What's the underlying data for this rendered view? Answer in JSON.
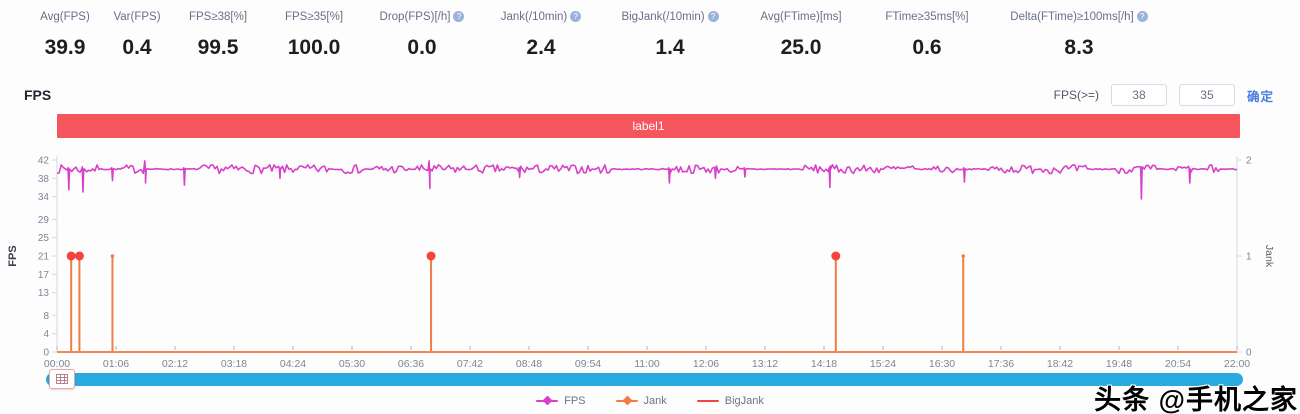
{
  "metrics": [
    {
      "label": "Avg(FPS)",
      "value": "39.9",
      "info": false
    },
    {
      "label": "Var(FPS)",
      "value": "0.4",
      "info": false
    },
    {
      "label": "FPS≥38[%]",
      "value": "99.5",
      "info": false
    },
    {
      "label": "FPS≥35[%]",
      "value": "100.0",
      "info": false
    },
    {
      "label": "Drop(FPS)[/h]",
      "value": "0.0",
      "info": true
    },
    {
      "label": "Jank(/10min)",
      "value": "2.4",
      "info": true
    },
    {
      "label": "BigJank(/10min)",
      "value": "1.4",
      "info": true
    },
    {
      "label": "Avg(FTime)[ms]",
      "value": "25.0",
      "info": false
    },
    {
      "label": "FTime≥35ms[%]",
      "value": "0.6",
      "info": false
    },
    {
      "label": "Delta(FTime)≥100ms[/h]",
      "value": "8.3",
      "info": true
    }
  ],
  "section": {
    "title": "FPS"
  },
  "controls": {
    "threshold_label": "FPS(>=)",
    "input1": "38",
    "input2": "35",
    "confirm_label": "确定"
  },
  "banner": {
    "label": "label1",
    "color": "#f5555d"
  },
  "chart_data": {
    "type": "line",
    "title": "FPS timeline with Jank / BigJank events",
    "x_ticks": [
      "00:00",
      "01:06",
      "02:12",
      "03:18",
      "04:24",
      "05:30",
      "06:36",
      "07:42",
      "08:48",
      "09:54",
      "11:00",
      "12:06",
      "13:12",
      "14:18",
      "15:24",
      "16:30",
      "17:36",
      "18:42",
      "19:48",
      "20:54",
      "22:00"
    ],
    "y_axis_left": {
      "label": "FPS",
      "ticks": [
        42,
        38,
        34,
        29,
        25,
        21,
        17,
        13,
        8,
        4,
        0
      ],
      "range": [
        0,
        42
      ]
    },
    "y_axis_right": {
      "label": "Jank",
      "ticks": [
        2,
        1,
        0
      ],
      "range": [
        0,
        2
      ]
    },
    "x_axis_color": "#ef8a57",
    "axis_line_color": "#d4d9e0",
    "tick_text_color": "#7c8698",
    "series": [
      {
        "name": "FPS",
        "type": "line",
        "color": "#d840c8",
        "baseline": 40,
        "noisy_segments": [
          [
            0.0,
            0.035
          ],
          [
            0.055,
            0.075
          ],
          [
            0.118,
            0.2
          ],
          [
            0.205,
            0.232
          ],
          [
            0.238,
            0.262
          ],
          [
            0.268,
            0.298
          ],
          [
            0.302,
            0.345
          ],
          [
            0.352,
            0.452
          ],
          [
            0.458,
            0.468
          ],
          [
            0.518,
            0.562
          ],
          [
            0.568,
            0.578
          ],
          [
            0.632,
            0.725
          ],
          [
            0.742,
            0.762
          ],
          [
            0.788,
            0.828
          ],
          [
            0.835,
            0.872
          ],
          [
            0.898,
            0.932
          ],
          [
            0.948,
            0.962
          ],
          [
            0.972,
            0.985
          ]
        ],
        "events": [
          {
            "f": 0.01,
            "lo": 35.5
          },
          {
            "f": 0.022,
            "lo": 35.0
          },
          {
            "f": 0.047,
            "lo": 37.5
          },
          {
            "f": 0.075,
            "hi": 41.8,
            "lo": 37.0
          },
          {
            "f": 0.108,
            "lo": 36.5
          },
          {
            "f": 0.189,
            "lo": 38.0
          },
          {
            "f": 0.316,
            "hi": 41.8,
            "lo": 35.8
          },
          {
            "f": 0.392,
            "lo": 38.2
          },
          {
            "f": 0.519,
            "lo": 37.0
          },
          {
            "f": 0.558,
            "lo": 38.0
          },
          {
            "f": 0.583,
            "lo": 38.3
          },
          {
            "f": 0.655,
            "lo": 36.0
          },
          {
            "f": 0.769,
            "lo": 37.2
          },
          {
            "f": 0.919,
            "lo": 33.5
          },
          {
            "f": 0.96,
            "lo": 37.0
          }
        ]
      },
      {
        "name": "Jank",
        "type": "stem",
        "color": "#ef7d45",
        "events": [
          {
            "f": 0.012,
            "value": 1,
            "big": true,
            "time": "00:16"
          },
          {
            "f": 0.019,
            "value": 1,
            "big": true,
            "time": "00:25"
          },
          {
            "f": 0.047,
            "value": 1,
            "big": false,
            "time": "01:02"
          },
          {
            "f": 0.317,
            "value": 1,
            "big": true,
            "time": "06:59"
          },
          {
            "f": 0.66,
            "value": 1,
            "big": true,
            "time": "14:31"
          },
          {
            "f": 0.768,
            "value": 1,
            "big": false,
            "time": "16:54"
          }
        ]
      },
      {
        "name": "BigJank",
        "type": "marker",
        "color": "#f4453c"
      }
    ]
  },
  "legend": [
    {
      "name": "FPS",
      "color": "#d840c8"
    },
    {
      "name": "Jank",
      "color": "#ef7d45"
    },
    {
      "name": "BigJank",
      "color": "#f4453c"
    }
  ],
  "watermark": "头条 @手机之家"
}
